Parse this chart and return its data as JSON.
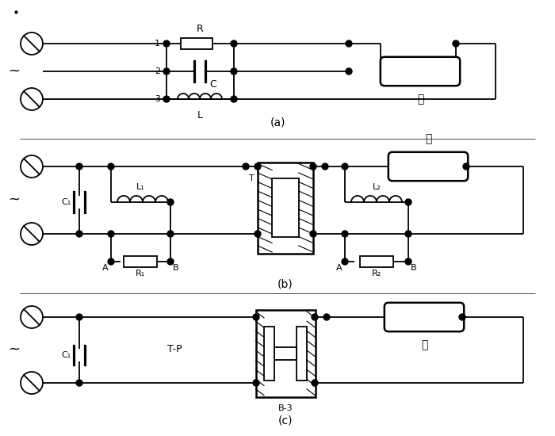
{
  "background": "#ffffff",
  "line_color": "#000000",
  "lw": 1.3,
  "panel_a_label": "(a)",
  "panel_b_label": "(b)",
  "panel_c_label": "(c)",
  "tilde": "~",
  "lamp_label": "灯",
  "C_label": "C",
  "R_label": "R",
  "L_label": "L",
  "L1_label": "L₁",
  "L2_label": "L₂",
  "C1_label": "C₁",
  "R1_label": "R₁",
  "R2_label": "R₂",
  "T_label": "T",
  "TP_label": "T-P",
  "B3_label": "B-3",
  "figw": 7.0,
  "figh": 5.5,
  "dpi": 100
}
